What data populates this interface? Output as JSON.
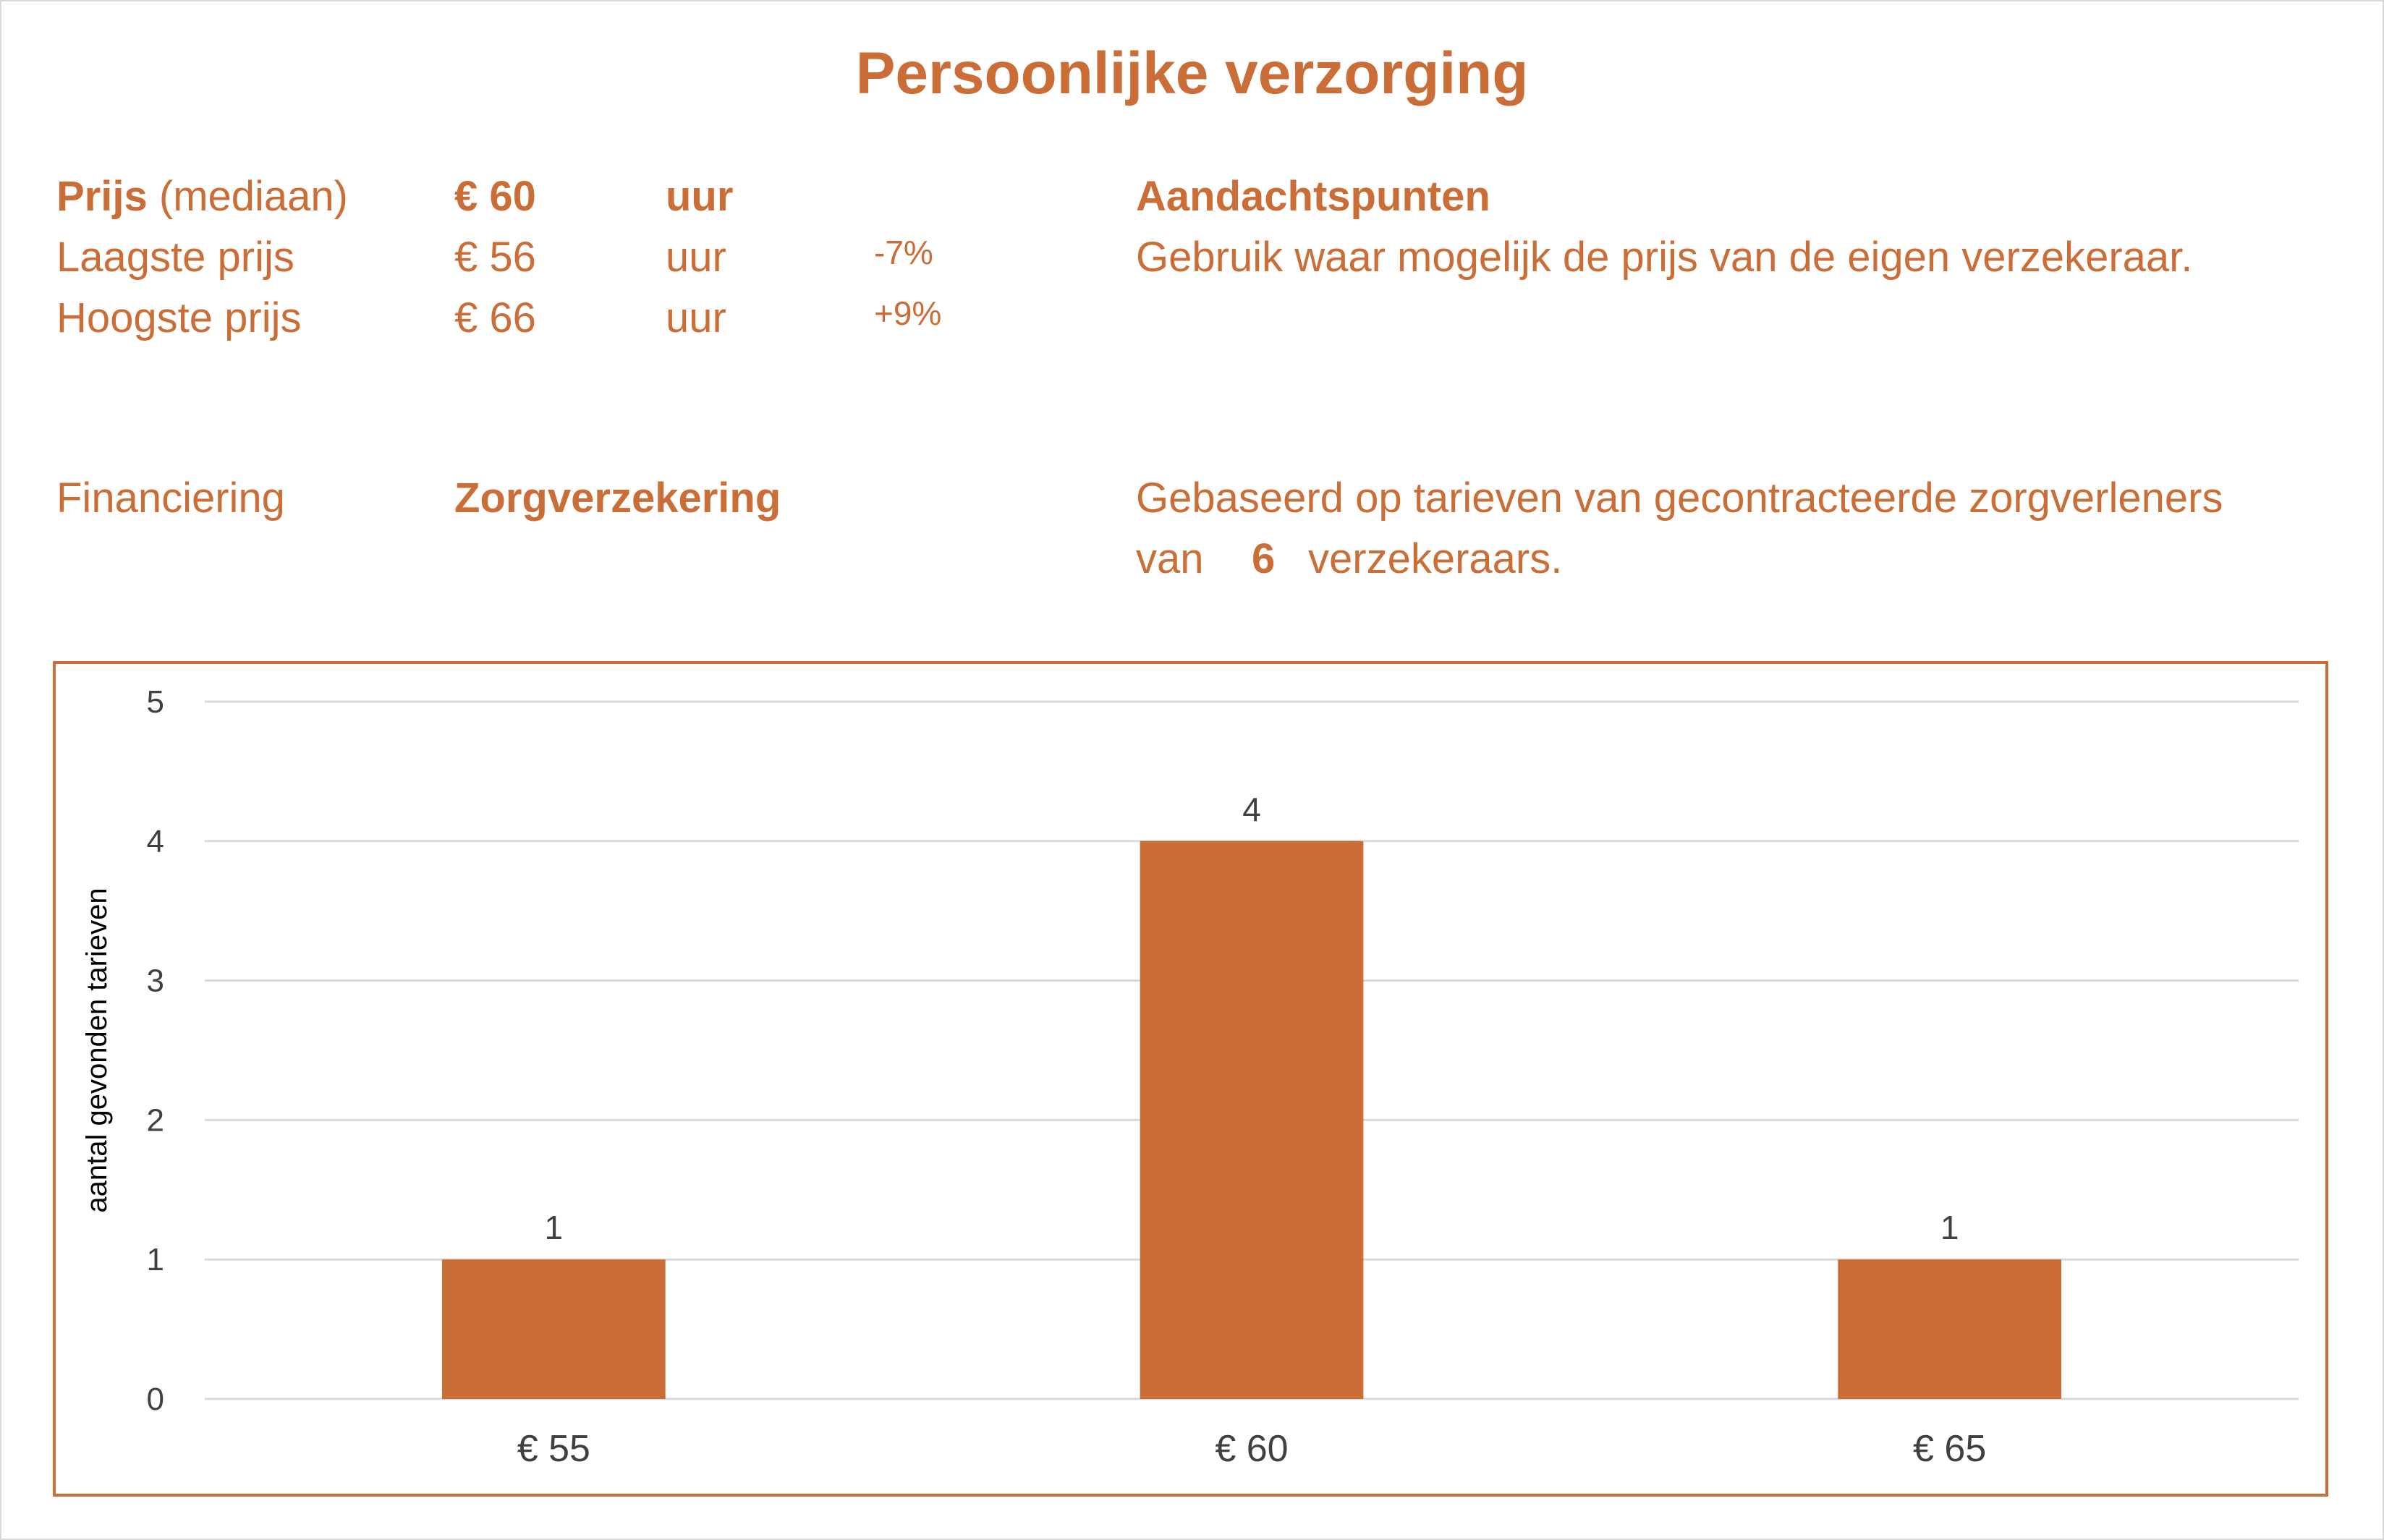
{
  "title": "Persoonlijke verzorging",
  "price": {
    "median_label_bold": "Prijs",
    "median_label_rest": "(mediaan)",
    "median_value": "€ 60",
    "median_unit": "uur",
    "low_label": "Laagste prijs",
    "low_value": "€ 56",
    "low_unit": "uur",
    "low_pct": "-7%",
    "high_label": "Hoogste prijs",
    "high_value": "€ 66",
    "high_unit": "uur",
    "high_pct": "+9%"
  },
  "notes": {
    "heading": "Aandachtspunten",
    "text": "Gebruik waar mogelijk de prijs van de eigen verzekeraar."
  },
  "financing": {
    "label": "Financiering",
    "value": "Zorgverzekering",
    "basis_line1": "Gebaseerd op tarieven van gecontracteerde zorgverleners",
    "basis_van": "van",
    "basis_count": "6",
    "basis_rest": "verzekeraars."
  },
  "colors": {
    "accent": "#CB6D36",
    "grid": "#d9d9d9",
    "axis_text": "#404040"
  },
  "chart_data": {
    "type": "bar",
    "categories": [
      "€ 55",
      "€ 60",
      "€ 65"
    ],
    "values": [
      1,
      4,
      1
    ],
    "data_labels": [
      "1",
      "4",
      "1"
    ],
    "ylabel": "aantal gevonden tarieven",
    "ylim": [
      0,
      5
    ],
    "yticks": [
      "0",
      "1",
      "2",
      "3",
      "4",
      "5"
    ],
    "grid": true,
    "legend": "none"
  }
}
